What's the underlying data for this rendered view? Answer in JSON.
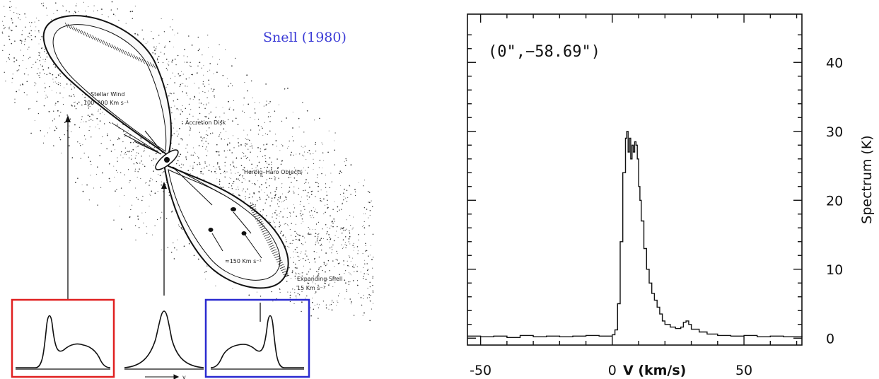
{
  "illustration": {
    "credit": "Snell (1980)",
    "labels": {
      "stellar_wind": "Stellar Wind",
      "stellar_wind_speed": "100–200 Km s⁻¹",
      "accretion_disk": "Accretion Disk",
      "herbig_haro": "Herbig–Haro Objects",
      "jet_speed": "≈150 Km s⁻¹",
      "expanding_shell": "Expanding Shell",
      "shell_speed": "15 Km s⁻¹",
      "v_axis": "v"
    },
    "box_colors": {
      "red": "#e02020",
      "blue": "#2a2ad0"
    }
  },
  "chart_data": {
    "type": "line",
    "annotation": "(0\",−58.69\")",
    "xlabel": "V (km/s)",
    "ylabel": "Spectrum (K)",
    "xlim": [
      -55,
      72
    ],
    "ylim": [
      -1,
      47
    ],
    "xticks": [
      -50,
      0,
      50
    ],
    "yticks": [
      0,
      10,
      20,
      30,
      40
    ],
    "x_tick_labels": [
      "-50",
      "0",
      "50"
    ],
    "y_tick_labels": [
      "0",
      "10",
      "20",
      "30",
      "40"
    ],
    "series": [
      {
        "x": [
          -55,
          -50,
          -45,
          -40,
          -35,
          -30,
          -25,
          -20,
          -15,
          -10,
          -5,
          0,
          1,
          2,
          3,
          4,
          5,
          5.5,
          6,
          6.5,
          7,
          7.5,
          8,
          8.5,
          9,
          9.5,
          10,
          10.5,
          11,
          12,
          13,
          14,
          15,
          16,
          17,
          18,
          19,
          20,
          22,
          24,
          26,
          27,
          28,
          29,
          30,
          33,
          36,
          40,
          45,
          50,
          55,
          60,
          65,
          72
        ],
        "y": [
          0.3,
          0.2,
          0.3,
          0.1,
          0.4,
          0.2,
          0.3,
          0.2,
          0.3,
          0.4,
          0.3,
          0.5,
          1.2,
          5,
          14,
          24,
          29,
          30,
          27,
          29,
          26,
          28,
          27,
          28.5,
          28,
          26,
          22,
          20,
          17,
          13,
          10,
          8,
          6.5,
          5.5,
          4.5,
          3.5,
          2.5,
          2,
          1.6,
          1.4,
          1.6,
          2.3,
          2.5,
          2,
          1.3,
          0.9,
          0.6,
          0.4,
          0.3,
          0.4,
          0.2,
          0.3,
          0.2,
          0.3
        ]
      }
    ],
    "grid": false
  }
}
